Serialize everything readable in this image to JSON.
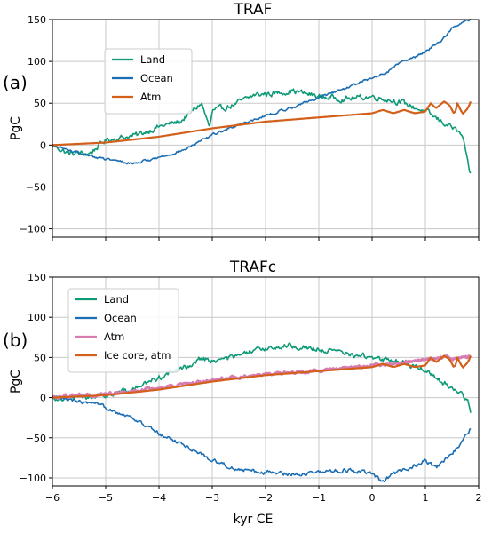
{
  "colors": {
    "land": "#0e9a77",
    "ocean": "#1c6eb4",
    "atm_orange": "#d2601a",
    "atm_pink": "#d77cb0",
    "grid": "#c8c8c8"
  },
  "chart_data": [
    {
      "type": "line",
      "title": "TRAF",
      "panel_label": "(a)",
      "ylabel": "PgC",
      "xlabel": "",
      "xlim": [
        -6,
        2
      ],
      "ylim": [
        -110,
        150
      ],
      "xticks": [
        -6,
        -5,
        -4,
        -3,
        -2,
        -1,
        0,
        1,
        2
      ],
      "xtick_labels": [
        "",
        "",
        "",
        "",
        "",
        "",
        "",
        "",
        ""
      ],
      "yticks": [
        150,
        100,
        50,
        0,
        -50,
        -100
      ],
      "ytick_labels": [
        "150",
        "100",
        "50",
        "0",
        "−50",
        "−100"
      ],
      "grid": true,
      "legend_position": "upper-left",
      "series": [
        {
          "name": "Land",
          "color": "#0e9a77",
          "noise": 3.5,
          "x": [
            -6,
            -5.7,
            -5.3,
            -5.0,
            -4.8,
            -4.4,
            -4.0,
            -3.6,
            -3.2,
            -3.1,
            -3.05,
            -3.0,
            -2.6,
            -2.2,
            -1.8,
            -1.5,
            -1.0,
            -0.5,
            0,
            0.5,
            1.0,
            1.3,
            1.5,
            1.7,
            1.8,
            1.85
          ],
          "y": [
            0,
            -10,
            -10,
            6,
            8,
            12,
            22,
            28,
            50,
            30,
            20,
            40,
            48,
            60,
            62,
            65,
            58,
            55,
            58,
            52,
            40,
            28,
            22,
            10,
            -25,
            -35
          ]
        },
        {
          "name": "Ocean",
          "color": "#1c6eb4",
          "noise": 1.5,
          "x": [
            -6,
            -5.5,
            -5.0,
            -4.5,
            -4.0,
            -3.5,
            -3.0,
            -2.5,
            -2.0,
            -1.5,
            -1.0,
            -0.5,
            0,
            0.3,
            0.5,
            0.8,
            1.0,
            1.3,
            1.5,
            1.7,
            1.85
          ],
          "y": [
            0,
            -10,
            -17,
            -22,
            -15,
            -5,
            12,
            25,
            35,
            45,
            57,
            68,
            80,
            88,
            98,
            105,
            112,
            125,
            140,
            147,
            150
          ]
        },
        {
          "name": "Atm",
          "color": "#d2601a",
          "noise": 0,
          "x": [
            -6,
            -5,
            -4,
            -3,
            -2,
            -1,
            0,
            0.2,
            0.4,
            0.6,
            0.8,
            1.0,
            1.1,
            1.2,
            1.35,
            1.45,
            1.55,
            1.6,
            1.7,
            1.8,
            1.85
          ],
          "y": [
            0,
            3,
            10,
            20,
            28,
            33,
            38,
            42,
            38,
            42,
            38,
            40,
            50,
            44,
            52,
            48,
            36,
            50,
            37,
            44,
            52
          ]
        }
      ]
    },
    {
      "type": "line",
      "title": "TRAFc",
      "panel_label": "(b)",
      "ylabel": "PgC",
      "xlabel": "kyr CE",
      "xlim": [
        -6,
        2
      ],
      "ylim": [
        -110,
        150
      ],
      "xticks": [
        -6,
        -5,
        -4,
        -3,
        -2,
        -1,
        0,
        1,
        2
      ],
      "xtick_labels": [
        "−6",
        "−5",
        "−4",
        "−3",
        "−2",
        "−1",
        "0",
        "1",
        "2"
      ],
      "yticks": [
        150,
        100,
        50,
        0,
        -50,
        -100
      ],
      "ytick_labels": [
        "150",
        "100",
        "50",
        "0",
        "−50",
        "−100"
      ],
      "grid": true,
      "legend_position": "upper-left",
      "series": [
        {
          "name": "Land",
          "color": "#0e9a77",
          "noise": 3.5,
          "x": [
            -6,
            -5.5,
            -5.0,
            -4.5,
            -4.0,
            -3.5,
            -3.2,
            -3.0,
            -2.5,
            -2.0,
            -1.5,
            -1.0,
            -0.5,
            0,
            0.5,
            1.0,
            1.3,
            1.6,
            1.8,
            1.85
          ],
          "y": [
            0,
            0,
            3,
            10,
            25,
            38,
            50,
            45,
            52,
            62,
            65,
            60,
            55,
            50,
            45,
            35,
            20,
            10,
            -5,
            -18
          ]
        },
        {
          "name": "Ocean",
          "color": "#1c6eb4",
          "noise": 2.5,
          "x": [
            -6,
            -5.5,
            -5.0,
            -4.5,
            -4.0,
            -3.5,
            -3.0,
            -2.5,
            -2.0,
            -1.5,
            -1.0,
            -0.5,
            0,
            0.2,
            0.4,
            0.7,
            1.0,
            1.2,
            1.5,
            1.7,
            1.85
          ],
          "y": [
            0,
            -5,
            -12,
            -25,
            -45,
            -60,
            -78,
            -90,
            -93,
            -95,
            -93,
            -90,
            -95,
            -105,
            -95,
            -88,
            -78,
            -88,
            -70,
            -55,
            -38
          ]
        },
        {
          "name": "Atm",
          "color": "#d77cb0",
          "noise": 2.0,
          "x": [
            -6,
            -5,
            -4,
            -3,
            -2,
            -1,
            0,
            0.3,
            0.6,
            0.9,
            1.1,
            1.4,
            1.6,
            1.8,
            1.85
          ],
          "y": [
            1,
            4,
            12,
            22,
            29,
            34,
            40,
            42,
            44,
            46,
            48,
            50,
            48,
            50,
            52
          ]
        },
        {
          "name": "Ice core, atm",
          "color": "#d2601a",
          "noise": 0,
          "x": [
            -6,
            -5,
            -4,
            -3,
            -2,
            -1,
            0,
            0.2,
            0.4,
            0.6,
            0.8,
            1.0,
            1.1,
            1.2,
            1.35,
            1.45,
            1.55,
            1.6,
            1.7,
            1.8,
            1.85
          ],
          "y": [
            0,
            3,
            10,
            20,
            28,
            33,
            38,
            42,
            38,
            42,
            38,
            40,
            50,
            44,
            52,
            48,
            36,
            50,
            37,
            44,
            52
          ]
        }
      ]
    }
  ]
}
